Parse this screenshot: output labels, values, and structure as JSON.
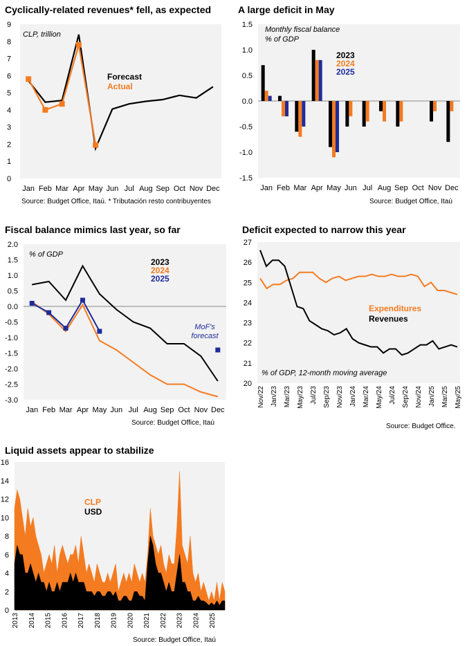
{
  "colors": {
    "black": "#000000",
    "orange": "#f47b20",
    "navy": "#1f2c99",
    "plot_bg": "#f2f2f2"
  },
  "chart_data": [
    {
      "id": "revenues",
      "type": "line",
      "title": "Cyclically-related revenues* fell, as expected",
      "unit_note": "CLP, trillion",
      "source": "Source: Budget Office, Itaú. * Tributación resto contribuyentes",
      "categories": [
        "Jan",
        "Feb",
        "Mar",
        "Apr",
        "May",
        "Jun",
        "Jul",
        "Aug",
        "Sep",
        "Oct",
        "Nov",
        "Dec"
      ],
      "ylim": [
        0,
        9
      ],
      "yticks": [
        0,
        1,
        2,
        3,
        4,
        5,
        6,
        7,
        8,
        9
      ],
      "series": [
        {
          "name": "Forecast",
          "color": "#000000",
          "values": [
            5.7,
            4.45,
            4.55,
            8.4,
            1.75,
            4.05,
            4.35,
            4.5,
            4.6,
            4.85,
            4.7,
            5.35
          ]
        },
        {
          "name": "Actual",
          "color": "#f47b20",
          "marker": "square",
          "values": [
            5.8,
            4.0,
            4.35,
            7.8,
            1.95,
            null,
            null,
            null,
            null,
            null,
            null,
            null
          ]
        }
      ]
    },
    {
      "id": "deficit",
      "type": "bar",
      "title": "A large deficit in May",
      "unit_note": [
        "Monthly fiscal balance",
        "% of GDP"
      ],
      "source": "Source: Budget Office, Itaú",
      "categories": [
        "Jan",
        "Feb",
        "Mar",
        "Apr",
        "May",
        "Jun",
        "Jul",
        "Aug",
        "Sep",
        "Oct",
        "Nov",
        "Dec"
      ],
      "ylim": [
        -1.5,
        1.5
      ],
      "yticks": [
        1.5,
        1.0,
        0.5,
        0.0,
        -0.5,
        -1.0,
        -1.5
      ],
      "ytick_labels": [
        "1.5",
        "1.0",
        "0.5",
        "0.0",
        "-0.5",
        "-1.0",
        "-1.5"
      ],
      "series": [
        {
          "name": "2023",
          "color": "#000000",
          "values": [
            0.7,
            0.1,
            -0.6,
            1.0,
            -0.9,
            -0.5,
            -0.5,
            -0.2,
            -0.5,
            0.0,
            -0.4,
            -0.8
          ]
        },
        {
          "name": "2024",
          "color": "#f47b20",
          "values": [
            0.2,
            -0.3,
            -0.7,
            0.8,
            -1.1,
            -0.3,
            -0.4,
            -0.4,
            -0.4,
            0.0,
            -0.2,
            -0.2
          ]
        },
        {
          "name": "2025",
          "color": "#1f2c99",
          "values": [
            0.1,
            -0.3,
            -0.5,
            0.8,
            -1.0,
            null,
            null,
            null,
            null,
            null,
            null,
            null
          ]
        }
      ]
    },
    {
      "id": "cumulative",
      "type": "line",
      "title": "Fiscal balance mimics last year, so far",
      "unit_note": "% of GDP",
      "source": "Source: Budget Office, Itaú",
      "categories": [
        "Jan",
        "Feb",
        "Mar",
        "Apr",
        "May",
        "Jun",
        "Jul",
        "Aug",
        "Sep",
        "Oct",
        "Nov",
        "Dec"
      ],
      "ylim": [
        -3.0,
        2.0
      ],
      "yticks": [
        2.0,
        1.5,
        1.0,
        0.5,
        0.0,
        -0.5,
        -1.0,
        -1.5,
        -2.0,
        -2.5,
        -3.0
      ],
      "ytick_labels": [
        "2.0",
        "1.5",
        "1.0",
        "0.5",
        "0.0",
        "-0.5",
        "-1.0",
        "-1.5",
        "-2.0",
        "-2.5",
        "-3.0"
      ],
      "annotation": [
        "MoF's",
        "forecast"
      ],
      "forecast_point": {
        "category": "Dec",
        "value": -1.4
      },
      "series": [
        {
          "name": "2023",
          "color": "#000000",
          "values": [
            0.7,
            0.8,
            0.2,
            1.3,
            0.4,
            -0.1,
            -0.5,
            -0.7,
            -1.2,
            -1.2,
            -1.6,
            -2.4
          ]
        },
        {
          "name": "2024",
          "color": "#f47b20",
          "values": [
            0.15,
            -0.25,
            -0.8,
            0.05,
            -1.1,
            -1.4,
            -1.8,
            -2.2,
            -2.5,
            -2.5,
            -2.75,
            -2.9
          ]
        },
        {
          "name": "2025",
          "color": "#1f2c99",
          "marker": "square",
          "values": [
            0.1,
            -0.2,
            -0.7,
            0.2,
            -0.8,
            null,
            null,
            null,
            null,
            null,
            null,
            null
          ]
        }
      ]
    },
    {
      "id": "moving_avg",
      "type": "line",
      "title": "Deficit expected to narrow this year",
      "unit_note": "% of GDP, 12-month moving average",
      "source": "Source: Budget Office.",
      "x_labels": [
        "Nov/22",
        "Jan/23",
        "Mar/23",
        "May/23",
        "Jul/23",
        "Sep/23",
        "Nov/23",
        "Jan/24",
        "Mar/24",
        "May/24",
        "Jul/24",
        "Sep/24",
        "Nov/24",
        "Jan/25",
        "Mar/25",
        "May/25"
      ],
      "ylim": [
        20,
        27
      ],
      "yticks": [
        27,
        26,
        25,
        24,
        23,
        22,
        21,
        20
      ],
      "series": [
        {
          "name": "Expenditures",
          "color": "#f47b20",
          "values": [
            25.2,
            24.7,
            24.9,
            24.9,
            25.1,
            25.2,
            25.5,
            25.5,
            25.5,
            25.2,
            25.0,
            25.2,
            25.3,
            25.1,
            25.2,
            25.3,
            25.3,
            25.4,
            25.3,
            25.3,
            25.4,
            25.3,
            25.3,
            25.4,
            25.3,
            24.8,
            25.0,
            24.6,
            24.6,
            24.5,
            24.4
          ]
        },
        {
          "name": "Revenues",
          "color": "#000000",
          "values": [
            26.6,
            25.8,
            26.1,
            26.1,
            25.8,
            24.8,
            23.8,
            23.7,
            23.1,
            22.9,
            22.7,
            22.6,
            22.4,
            22.5,
            22.7,
            22.2,
            22.0,
            21.9,
            21.8,
            21.8,
            21.5,
            21.7,
            21.7,
            21.4,
            21.5,
            21.7,
            21.9,
            21.9,
            22.1,
            21.7,
            21.8,
            21.9,
            21.8
          ]
        }
      ]
    },
    {
      "id": "liquid",
      "type": "area",
      "title": "Liquid assets appear to stabilize",
      "source": "Source: Budget Office, Itaú",
      "x_labels": [
        "2013",
        "2014",
        "2015",
        "2016",
        "2017",
        "2018",
        "2019",
        "2020",
        "2021",
        "2022",
        "2023",
        "2024",
        "2025"
      ],
      "ylim": [
        0,
        16
      ],
      "yticks": [
        16,
        14,
        12,
        10,
        8,
        6,
        4,
        2,
        0
      ],
      "series": [
        {
          "name": "CLP",
          "color": "#f47b20",
          "values": [
            11,
            13,
            12,
            10,
            8,
            11,
            9,
            10,
            8,
            7,
            6,
            4,
            5,
            6,
            5,
            7,
            4,
            6,
            7,
            6,
            5,
            6,
            6,
            7,
            5,
            8,
            6,
            4,
            5,
            4,
            3,
            5,
            4,
            3,
            3,
            4,
            3,
            4,
            5,
            2,
            3,
            4,
            3,
            4,
            3,
            5,
            4,
            3,
            4,
            3,
            6,
            11,
            8,
            7,
            6,
            7,
            5,
            4,
            6,
            5,
            5,
            9,
            15,
            7,
            6,
            5,
            8,
            4,
            3,
            4,
            2,
            3,
            2,
            1,
            2,
            1,
            3,
            1,
            3,
            2
          ]
        },
        {
          "name": "USD",
          "color": "#000000",
          "values": [
            5,
            7,
            6,
            6,
            4,
            4,
            5,
            4,
            3,
            4,
            3,
            3,
            2,
            3,
            2,
            2,
            3,
            2,
            3,
            3,
            3,
            4,
            3,
            4,
            3,
            3,
            3,
            2,
            2,
            2,
            1.5,
            2,
            2,
            1.5,
            1.5,
            2,
            2,
            1.5,
            2,
            1,
            1,
            1.5,
            1.5,
            1,
            1,
            2,
            2,
            1.5,
            1.5,
            1,
            5,
            8,
            7,
            5,
            4,
            4,
            3,
            2,
            3,
            2,
            2,
            4,
            6,
            3,
            3,
            2,
            2,
            1,
            1,
            1.5,
            1,
            1,
            0.8,
            0.5,
            0.8,
            0.5,
            1,
            0.5,
            1,
            1
          ]
        }
      ]
    }
  ]
}
